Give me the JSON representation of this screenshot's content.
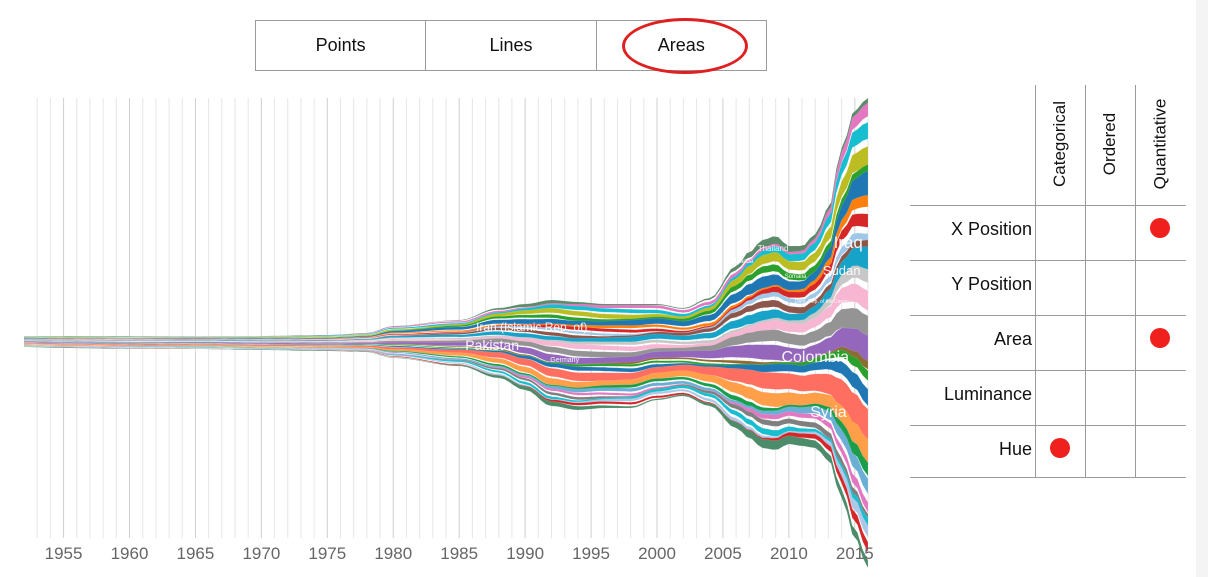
{
  "toggle": {
    "options": [
      "Points",
      "Lines",
      "Areas"
    ],
    "selected": "Areas",
    "highlight_color": "#e02020"
  },
  "chart_data": {
    "type": "area",
    "x_ticks": [
      "1955",
      "1960",
      "1965",
      "1970",
      "1975",
      "1980",
      "1985",
      "1990",
      "1995",
      "2000",
      "2005",
      "2010",
      "2015"
    ],
    "xlim": [
      1952,
      2016
    ],
    "grid": "vertical",
    "stream_labels": [
      "Iraq",
      "Sudan",
      "Thailand",
      "Uganda",
      "Somalia",
      "Dem. Rep. of the Congo",
      "Iran (Islamic Rep. of)",
      "Pakistan",
      "Colombia",
      "Syria",
      "Germany",
      "China, Hong Kong SAR"
    ]
  },
  "matrix": {
    "columns": [
      "Categorical",
      "Ordered",
      "Quantitative"
    ],
    "rows": [
      {
        "label": "X Position",
        "marks": [
          false,
          false,
          true
        ]
      },
      {
        "label": "Y Position",
        "marks": [
          false,
          false,
          false
        ]
      },
      {
        "label": "Area",
        "marks": [
          false,
          false,
          true
        ]
      },
      {
        "label": "Luminance",
        "marks": [
          false,
          false,
          false
        ]
      },
      {
        "label": "Hue",
        "marks": [
          true,
          false,
          false
        ]
      }
    ],
    "dot_color": "#f0201e"
  }
}
